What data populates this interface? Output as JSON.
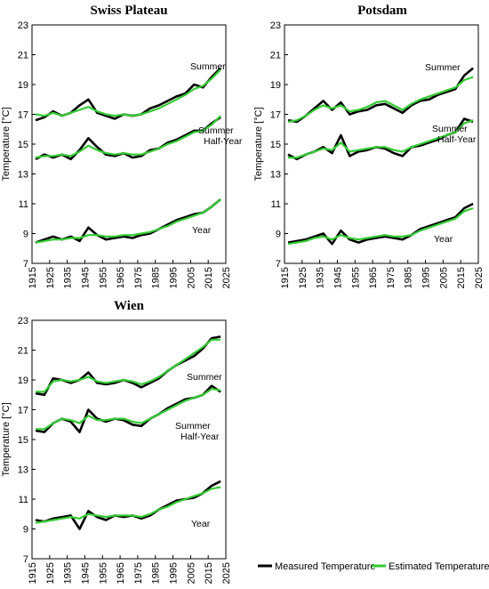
{
  "colors": {
    "measured": "#000000",
    "estimated": "#33cc33"
  },
  "legend": [
    {
      "key": "measured",
      "label": "Measured Temperature"
    },
    {
      "key": "estimated",
      "label": "Estimated Temperature"
    }
  ],
  "chart_data": [
    {
      "type": "line",
      "title": "Swiss Plateau",
      "ylabel": "Temperature [°C]",
      "xlim": [
        1915,
        2025
      ],
      "ylim": [
        7,
        23
      ],
      "xticks": [
        1915,
        1925,
        1935,
        1945,
        1955,
        1965,
        1975,
        1985,
        1995,
        2005,
        2015,
        2025
      ],
      "yticks": [
        7,
        9,
        11,
        13,
        15,
        17,
        19,
        21,
        23
      ],
      "annotations": [
        "Summer",
        "Summer Half-Year",
        "Year"
      ],
      "groups": [
        {
          "name": "Summer",
          "x": [
            1917,
            1922,
            1927,
            1932,
            1937,
            1942,
            1947,
            1952,
            1957,
            1962,
            1967,
            1972,
            1977,
            1982,
            1987,
            1992,
            1997,
            2002,
            2007,
            2012,
            2017,
            2022
          ],
          "measured": [
            16.6,
            16.8,
            17.2,
            16.9,
            17.1,
            17.6,
            18.0,
            17.1,
            16.9,
            16.7,
            17.0,
            16.9,
            17.0,
            17.4,
            17.6,
            17.9,
            18.2,
            18.4,
            19.0,
            18.8,
            19.5,
            20.1
          ],
          "estimated": [
            17.0,
            16.9,
            17.1,
            16.9,
            17.1,
            17.3,
            17.5,
            17.2,
            17.0,
            16.9,
            17.0,
            16.9,
            17.0,
            17.2,
            17.4,
            17.7,
            18.0,
            18.3,
            18.7,
            18.9,
            19.4,
            20.0
          ]
        },
        {
          "name": "Summer Half-Year",
          "x": [
            1917,
            1922,
            1927,
            1932,
            1937,
            1942,
            1947,
            1952,
            1957,
            1962,
            1967,
            1972,
            1977,
            1982,
            1987,
            1992,
            1997,
            2002,
            2007,
            2012,
            2017,
            2022
          ],
          "measured": [
            14.0,
            14.3,
            14.1,
            14.3,
            14.0,
            14.6,
            15.4,
            14.8,
            14.3,
            14.2,
            14.4,
            14.1,
            14.2,
            14.6,
            14.7,
            15.1,
            15.3,
            15.6,
            15.9,
            15.9,
            16.4,
            16.8
          ],
          "estimated": [
            14.1,
            14.2,
            14.2,
            14.3,
            14.2,
            14.5,
            14.9,
            14.6,
            14.4,
            14.3,
            14.4,
            14.3,
            14.3,
            14.5,
            14.7,
            15.0,
            15.2,
            15.5,
            15.8,
            15.9,
            16.3,
            16.9
          ]
        },
        {
          "name": "Year",
          "x": [
            1917,
            1922,
            1927,
            1932,
            1937,
            1942,
            1947,
            1952,
            1957,
            1962,
            1967,
            1972,
            1977,
            1982,
            1987,
            1992,
            1997,
            2002,
            2007,
            2012,
            2017,
            2022
          ],
          "measured": [
            8.4,
            8.6,
            8.8,
            8.6,
            8.8,
            8.5,
            9.4,
            8.9,
            8.6,
            8.7,
            8.8,
            8.7,
            8.9,
            9.0,
            9.3,
            9.6,
            9.9,
            10.1,
            10.3,
            10.4,
            10.8,
            11.3
          ],
          "estimated": [
            8.4,
            8.5,
            8.6,
            8.6,
            8.7,
            8.7,
            8.9,
            8.9,
            8.8,
            8.8,
            8.9,
            8.9,
            9.0,
            9.1,
            9.3,
            9.5,
            9.8,
            10.0,
            10.2,
            10.4,
            10.8,
            11.3
          ]
        }
      ]
    },
    {
      "type": "line",
      "title": "Potsdam",
      "ylabel": "Temperature [°C]",
      "xlim": [
        1915,
        2025
      ],
      "ylim": [
        7,
        23
      ],
      "xticks": [
        1915,
        1925,
        1935,
        1945,
        1955,
        1965,
        1975,
        1985,
        1995,
        2005,
        2015,
        2025
      ],
      "yticks": [
        7,
        9,
        11,
        13,
        15,
        17,
        19,
        21,
        23
      ],
      "annotations": [
        "Summer",
        "Summer Half-Year",
        "Year"
      ],
      "groups": [
        {
          "name": "Summer",
          "x": [
            1917,
            1922,
            1927,
            1932,
            1937,
            1942,
            1947,
            1952,
            1957,
            1962,
            1967,
            1972,
            1977,
            1982,
            1987,
            1992,
            1997,
            2002,
            2007,
            2012,
            2017,
            2022
          ],
          "measured": [
            16.6,
            16.5,
            16.9,
            17.4,
            17.9,
            17.3,
            17.8,
            17.0,
            17.2,
            17.3,
            17.6,
            17.7,
            17.4,
            17.1,
            17.6,
            17.9,
            18.0,
            18.3,
            18.5,
            18.7,
            19.6,
            20.1
          ],
          "estimated": [
            16.5,
            16.6,
            16.9,
            17.3,
            17.6,
            17.4,
            17.6,
            17.2,
            17.3,
            17.5,
            17.8,
            17.9,
            17.6,
            17.3,
            17.7,
            18.0,
            18.2,
            18.4,
            18.6,
            18.8,
            19.3,
            19.5
          ]
        },
        {
          "name": "Summer Half-Year",
          "x": [
            1917,
            1922,
            1927,
            1932,
            1937,
            1942,
            1947,
            1952,
            1957,
            1962,
            1967,
            1972,
            1977,
            1982,
            1987,
            1992,
            1997,
            2002,
            2007,
            2012,
            2017,
            2022
          ],
          "measured": [
            14.3,
            14.0,
            14.3,
            14.5,
            14.8,
            14.4,
            15.6,
            14.2,
            14.5,
            14.6,
            14.8,
            14.7,
            14.4,
            14.2,
            14.8,
            14.9,
            15.1,
            15.3,
            15.6,
            15.8,
            16.7,
            16.5
          ],
          "estimated": [
            14.1,
            14.1,
            14.3,
            14.5,
            14.7,
            14.6,
            15.1,
            14.5,
            14.6,
            14.7,
            14.8,
            14.8,
            14.6,
            14.5,
            14.8,
            15.0,
            15.2,
            15.4,
            15.6,
            15.8,
            16.4,
            16.6
          ]
        },
        {
          "name": "Year",
          "x": [
            1917,
            1922,
            1927,
            1932,
            1937,
            1942,
            1947,
            1952,
            1957,
            1962,
            1967,
            1972,
            1977,
            1982,
            1987,
            1992,
            1997,
            2002,
            2007,
            2012,
            2017,
            2022
          ],
          "measured": [
            8.4,
            8.5,
            8.6,
            8.8,
            9.0,
            8.3,
            9.2,
            8.6,
            8.4,
            8.6,
            8.7,
            8.8,
            8.7,
            8.6,
            8.9,
            9.3,
            9.5,
            9.7,
            9.9,
            10.1,
            10.7,
            11.0
          ],
          "estimated": [
            8.3,
            8.4,
            8.5,
            8.7,
            8.8,
            8.6,
            8.9,
            8.7,
            8.6,
            8.7,
            8.8,
            8.9,
            8.8,
            8.8,
            8.9,
            9.2,
            9.4,
            9.6,
            9.8,
            10.0,
            10.5,
            10.7
          ]
        }
      ]
    },
    {
      "type": "line",
      "title": "Wien",
      "ylabel": "Temperature [°C]",
      "xlim": [
        1915,
        2025
      ],
      "ylim": [
        7,
        23
      ],
      "xticks": [
        1915,
        1925,
        1935,
        1945,
        1955,
        1965,
        1975,
        1985,
        1995,
        2005,
        2015,
        2025
      ],
      "yticks": [
        7,
        9,
        11,
        13,
        15,
        17,
        19,
        21,
        23
      ],
      "annotations": [
        "Summer",
        "Summer Half-Year",
        "Year"
      ],
      "groups": [
        {
          "name": "Summer",
          "x": [
            1917,
            1922,
            1927,
            1932,
            1937,
            1942,
            1947,
            1952,
            1957,
            1962,
            1967,
            1972,
            1977,
            1982,
            1987,
            1992,
            1997,
            2002,
            2007,
            2012,
            2017,
            2022
          ],
          "measured": [
            18.1,
            18.0,
            19.1,
            19.0,
            18.8,
            19.0,
            19.5,
            18.8,
            18.7,
            18.8,
            19.0,
            18.8,
            18.5,
            18.8,
            19.1,
            19.6,
            20.0,
            20.3,
            20.6,
            21.1,
            21.8,
            21.9
          ],
          "estimated": [
            18.2,
            18.2,
            18.9,
            19.0,
            18.9,
            19.0,
            19.2,
            18.9,
            18.8,
            18.9,
            19.0,
            18.9,
            18.7,
            18.9,
            19.2,
            19.6,
            20.0,
            20.4,
            20.8,
            21.2,
            21.7,
            21.7
          ]
        },
        {
          "name": "Summer Half-Year",
          "x": [
            1917,
            1922,
            1927,
            1932,
            1937,
            1942,
            1947,
            1952,
            1957,
            1962,
            1967,
            1972,
            1977,
            1982,
            1987,
            1992,
            1997,
            2002,
            2007,
            2012,
            2017,
            2022
          ],
          "measured": [
            15.6,
            15.5,
            16.1,
            16.4,
            16.2,
            15.5,
            17.0,
            16.4,
            16.2,
            16.4,
            16.3,
            16.0,
            15.9,
            16.4,
            16.7,
            17.1,
            17.4,
            17.7,
            17.8,
            18.0,
            18.6,
            18.2
          ],
          "estimated": [
            15.7,
            15.7,
            16.1,
            16.4,
            16.3,
            16.1,
            16.6,
            16.3,
            16.3,
            16.4,
            16.4,
            16.2,
            16.1,
            16.4,
            16.7,
            17.0,
            17.3,
            17.6,
            17.8,
            18.0,
            18.4,
            18.3
          ]
        },
        {
          "name": "Year",
          "x": [
            1917,
            1922,
            1927,
            1932,
            1937,
            1942,
            1947,
            1952,
            1957,
            1962,
            1967,
            1972,
            1977,
            1982,
            1987,
            1992,
            1997,
            2002,
            2007,
            2012,
            2017,
            2022
          ],
          "measured": [
            9.6,
            9.5,
            9.7,
            9.8,
            9.9,
            9.0,
            10.2,
            9.8,
            9.6,
            9.9,
            9.8,
            9.9,
            9.7,
            9.9,
            10.3,
            10.6,
            10.9,
            11.0,
            11.1,
            11.4,
            11.9,
            12.2
          ],
          "estimated": [
            9.4,
            9.5,
            9.6,
            9.7,
            9.8,
            9.7,
            10.0,
            9.9,
            9.8,
            9.9,
            9.9,
            9.9,
            9.8,
            10.0,
            10.3,
            10.5,
            10.8,
            11.0,
            11.2,
            11.4,
            11.7,
            11.8
          ]
        }
      ]
    }
  ]
}
